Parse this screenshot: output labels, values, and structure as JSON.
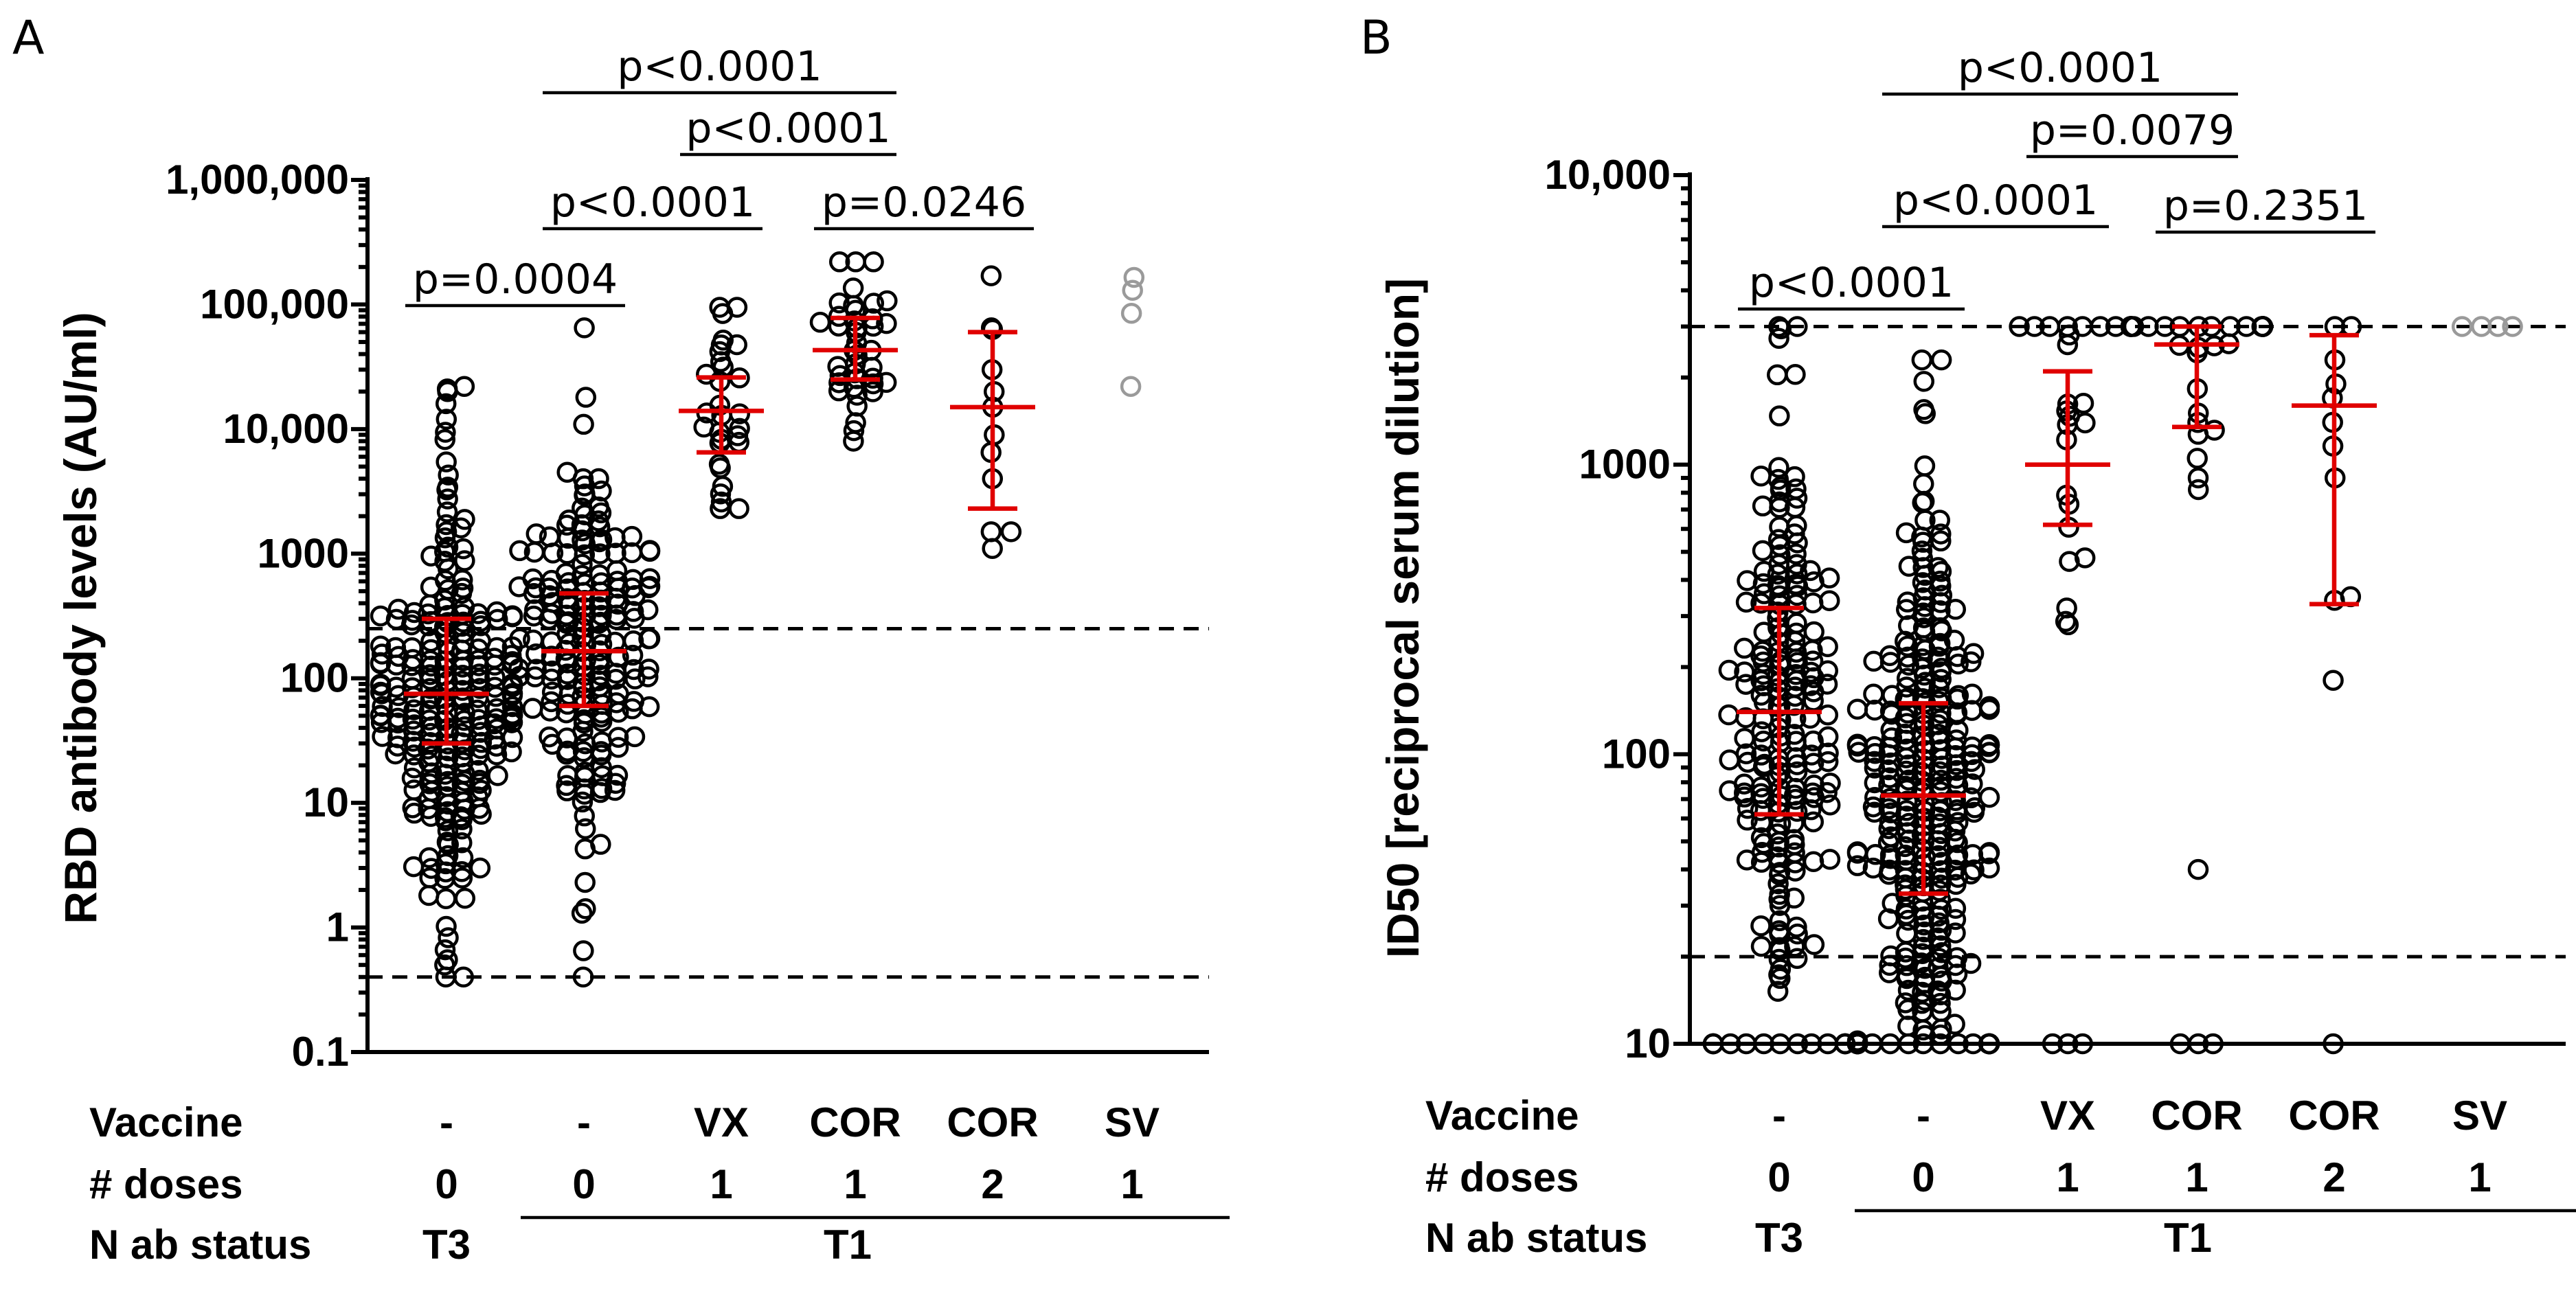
{
  "chart_data": [
    {
      "type": "scatter",
      "panel_label": "A",
      "ylabel": "RBD antibody levels (AU/ml)",
      "yscale": "log",
      "ylim": [
        0.1,
        1000000
      ],
      "yticks": [
        {
          "value": 1000000,
          "label": "1,000,000"
        },
        {
          "value": 100000,
          "label": "100,000"
        },
        {
          "value": 10000,
          "label": "10,000"
        },
        {
          "value": 1000,
          "label": "1000"
        },
        {
          "value": 100,
          "label": "100"
        },
        {
          "value": 10,
          "label": "10"
        },
        {
          "value": 1,
          "label": "1"
        },
        {
          "value": 0.1,
          "label": "0.1"
        }
      ],
      "reference_lines": [
        250,
        0.4
      ],
      "groups": [
        {
          "vaccine": "-",
          "doses": "0",
          "status": "T3",
          "color": "#000000",
          "n_points": 260,
          "min": 0.4,
          "max": 22000,
          "median": 75,
          "iqr": [
            30,
            300
          ],
          "extra_values": [
            0.4,
            0.4,
            0.5,
            0.55,
            1.7,
            2.5,
            20000,
            21000,
            22000,
            16000,
            12000
          ]
        },
        {
          "vaccine": "-",
          "doses": "0",
          "status": "T1",
          "color": "#000000",
          "n_points": 200,
          "min": 0.4,
          "max": 65000,
          "median": 165,
          "iqr": [
            60,
            480
          ],
          "extra_values": [
            0.4,
            0.65,
            1.3,
            2.3,
            65000,
            18000,
            4500,
            4000,
            3500
          ]
        },
        {
          "vaccine": "VX",
          "doses": "1",
          "status": "T1",
          "color": "#000000",
          "n_points": 30,
          "min": 2300,
          "max": 95000,
          "median": 14000,
          "iqr": [
            6500,
            26000
          ],
          "extra_values": [
            2300,
            95000
          ]
        },
        {
          "vaccine": "COR",
          "doses": "1",
          "status": "T1",
          "color": "#000000",
          "n_points": 40,
          "min": 8000,
          "max": 220000,
          "median": 43000,
          "iqr": [
            25000,
            78000
          ],
          "extra_values": [
            8000,
            220000
          ]
        },
        {
          "vaccine": "COR",
          "doses": "2",
          "status": "T1",
          "color": "#000000",
          "n_points": 12,
          "min": 1100,
          "max": 170000,
          "median": 15000,
          "iqr": [
            2300,
            60000
          ],
          "extra_values": [
            1100,
            1500,
            1500,
            6500,
            15000,
            65000,
            170000,
            30000,
            9000,
            4000,
            63000,
            20000
          ]
        },
        {
          "vaccine": "SV",
          "doses": "1",
          "status": "T1",
          "color": "#9a9a9a",
          "n_points": 4,
          "show_stats": false,
          "extra_values": [
            130000,
            165000,
            85000,
            22000
          ]
        }
      ],
      "comparisons": [
        {
          "from": 0,
          "to": 1,
          "label": "p=0.0004"
        },
        {
          "from": 1,
          "to": 2,
          "label": "p<0.0001"
        },
        {
          "from": 1,
          "to": 3,
          "label": "p<0.0001"
        },
        {
          "from": 2,
          "to": 3,
          "label": "p<0.0001"
        },
        {
          "from": 3,
          "to": 4,
          "label": "p=0.0246"
        }
      ]
    },
    {
      "type": "scatter",
      "panel_label": "B",
      "ylabel": "ID50  [reciprocal serum dilution]",
      "yscale": "log",
      "ylim": [
        10,
        10000
      ],
      "yticks": [
        {
          "value": 10000,
          "label": "10,000"
        },
        {
          "value": 1000,
          "label": "1000"
        },
        {
          "value": 100,
          "label": "100"
        },
        {
          "value": 10,
          "label": "10"
        }
      ],
      "reference_lines": [
        3000,
        20
      ],
      "groups": [
        {
          "vaccine": "-",
          "doses": "0",
          "status": "T3",
          "color": "#000000",
          "n_points": 220,
          "min": 10,
          "max": 3000,
          "median": 140,
          "iqr": [
            62,
            320
          ],
          "floor_count": 9,
          "cap_count": 1
        },
        {
          "vaccine": "-",
          "doses": "0",
          "status": "T1",
          "color": "#000000",
          "n_points": 330,
          "min": 10,
          "max": 2300,
          "median": 72,
          "iqr": [
            33,
            150
          ],
          "floor_count": 16,
          "extra_values": [
            2300,
            1550,
            1500
          ]
        },
        {
          "vaccine": "VX",
          "doses": "1",
          "status": "T1",
          "color": "#000000",
          "n_points": 28,
          "min": 10,
          "max": 3000,
          "median": 1000,
          "iqr": [
            620,
            2100
          ],
          "floor_count": 3,
          "cap_count": 4,
          "extra_values": [
            320,
            280
          ]
        },
        {
          "vaccine": "COR",
          "doses": "1",
          "status": "T1",
          "color": "#000000",
          "n_points": 40,
          "min": 10,
          "max": 3000,
          "median": 2600,
          "iqr": [
            1350,
            3000
          ],
          "floor_count": 3,
          "cap_count": 14,
          "extra_values": [
            40,
            820,
            900
          ]
        },
        {
          "vaccine": "COR",
          "doses": "2",
          "status": "T1",
          "color": "#000000",
          "n_points": 12,
          "min": 10,
          "max": 3000,
          "median": 1600,
          "iqr": [
            330,
            2800
          ],
          "floor_count": 1,
          "cap_count": 2,
          "extra_values": [
            180,
            350,
            340,
            1700,
            1900,
            2300,
            1400,
            900
          ]
        },
        {
          "vaccine": "SV",
          "doses": "1",
          "status": "T1",
          "color": "#9a9a9a",
          "n_points": 4,
          "show_stats": false,
          "cap_count": 4
        }
      ],
      "comparisons": [
        {
          "from": 0,
          "to": 1,
          "label": "p<0.0001"
        },
        {
          "from": 1,
          "to": 2,
          "label": "p<0.0001"
        },
        {
          "from": 1,
          "to": 3,
          "label": "p<0.0001"
        },
        {
          "from": 2,
          "to": 3,
          "label": "p=0.0079"
        },
        {
          "from": 3,
          "to": 4,
          "label": "p=0.2351"
        }
      ]
    }
  ],
  "row_headers": [
    "Vaccine",
    "# doses",
    "N ab status"
  ],
  "status_labels": [
    "T3",
    "T1"
  ]
}
